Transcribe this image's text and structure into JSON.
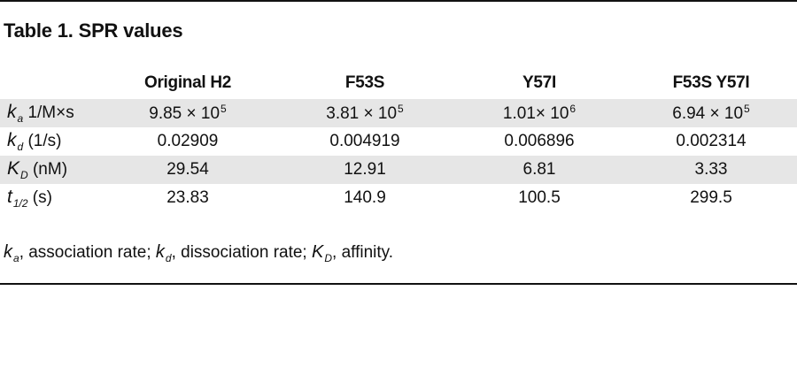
{
  "title": "Table 1. SPR values",
  "columns": [
    "",
    "Original H2",
    "F53S",
    "Y57I",
    "F53S Y57I"
  ],
  "rows": [
    {
      "symbol": "k",
      "sub": "a",
      "unit": " 1/M×s",
      "cells": [
        {
          "mantissa": "9.85 × 10",
          "exp": "5"
        },
        {
          "mantissa": "3.81 × 10",
          "exp": "5"
        },
        {
          "mantissa": "1.01× 10",
          "exp": "6"
        },
        {
          "mantissa": "6.94 × 10",
          "exp": "5"
        }
      ]
    },
    {
      "symbol": "k",
      "sub": "d",
      "unit": " (1/s)",
      "cells": [
        {
          "mantissa": "0.02909",
          "exp": ""
        },
        {
          "mantissa": "0.004919",
          "exp": ""
        },
        {
          "mantissa": "0.006896",
          "exp": ""
        },
        {
          "mantissa": "0.002314",
          "exp": ""
        }
      ]
    },
    {
      "symbol": "K",
      "sub": "D",
      "unit": " (nM)",
      "cells": [
        {
          "mantissa": "29.54",
          "exp": ""
        },
        {
          "mantissa": "12.91",
          "exp": ""
        },
        {
          "mantissa": "6.81",
          "exp": ""
        },
        {
          "mantissa": "3.33",
          "exp": ""
        }
      ]
    },
    {
      "symbol": "t",
      "sub": "1/2",
      "unit": " (s)",
      "cells": [
        {
          "mantissa": "23.83",
          "exp": ""
        },
        {
          "mantissa": "140.9",
          "exp": ""
        },
        {
          "mantissa": "100.5",
          "exp": ""
        },
        {
          "mantissa": "299.5",
          "exp": ""
        }
      ]
    }
  ],
  "footnote": {
    "k1": "k",
    "s1": "a",
    "t1": ", association rate; ",
    "k2": "k",
    "s2": "d",
    "t2": ", dissociation rate; ",
    "k3": "K",
    "s3": "D",
    "t3": ", affinity."
  }
}
